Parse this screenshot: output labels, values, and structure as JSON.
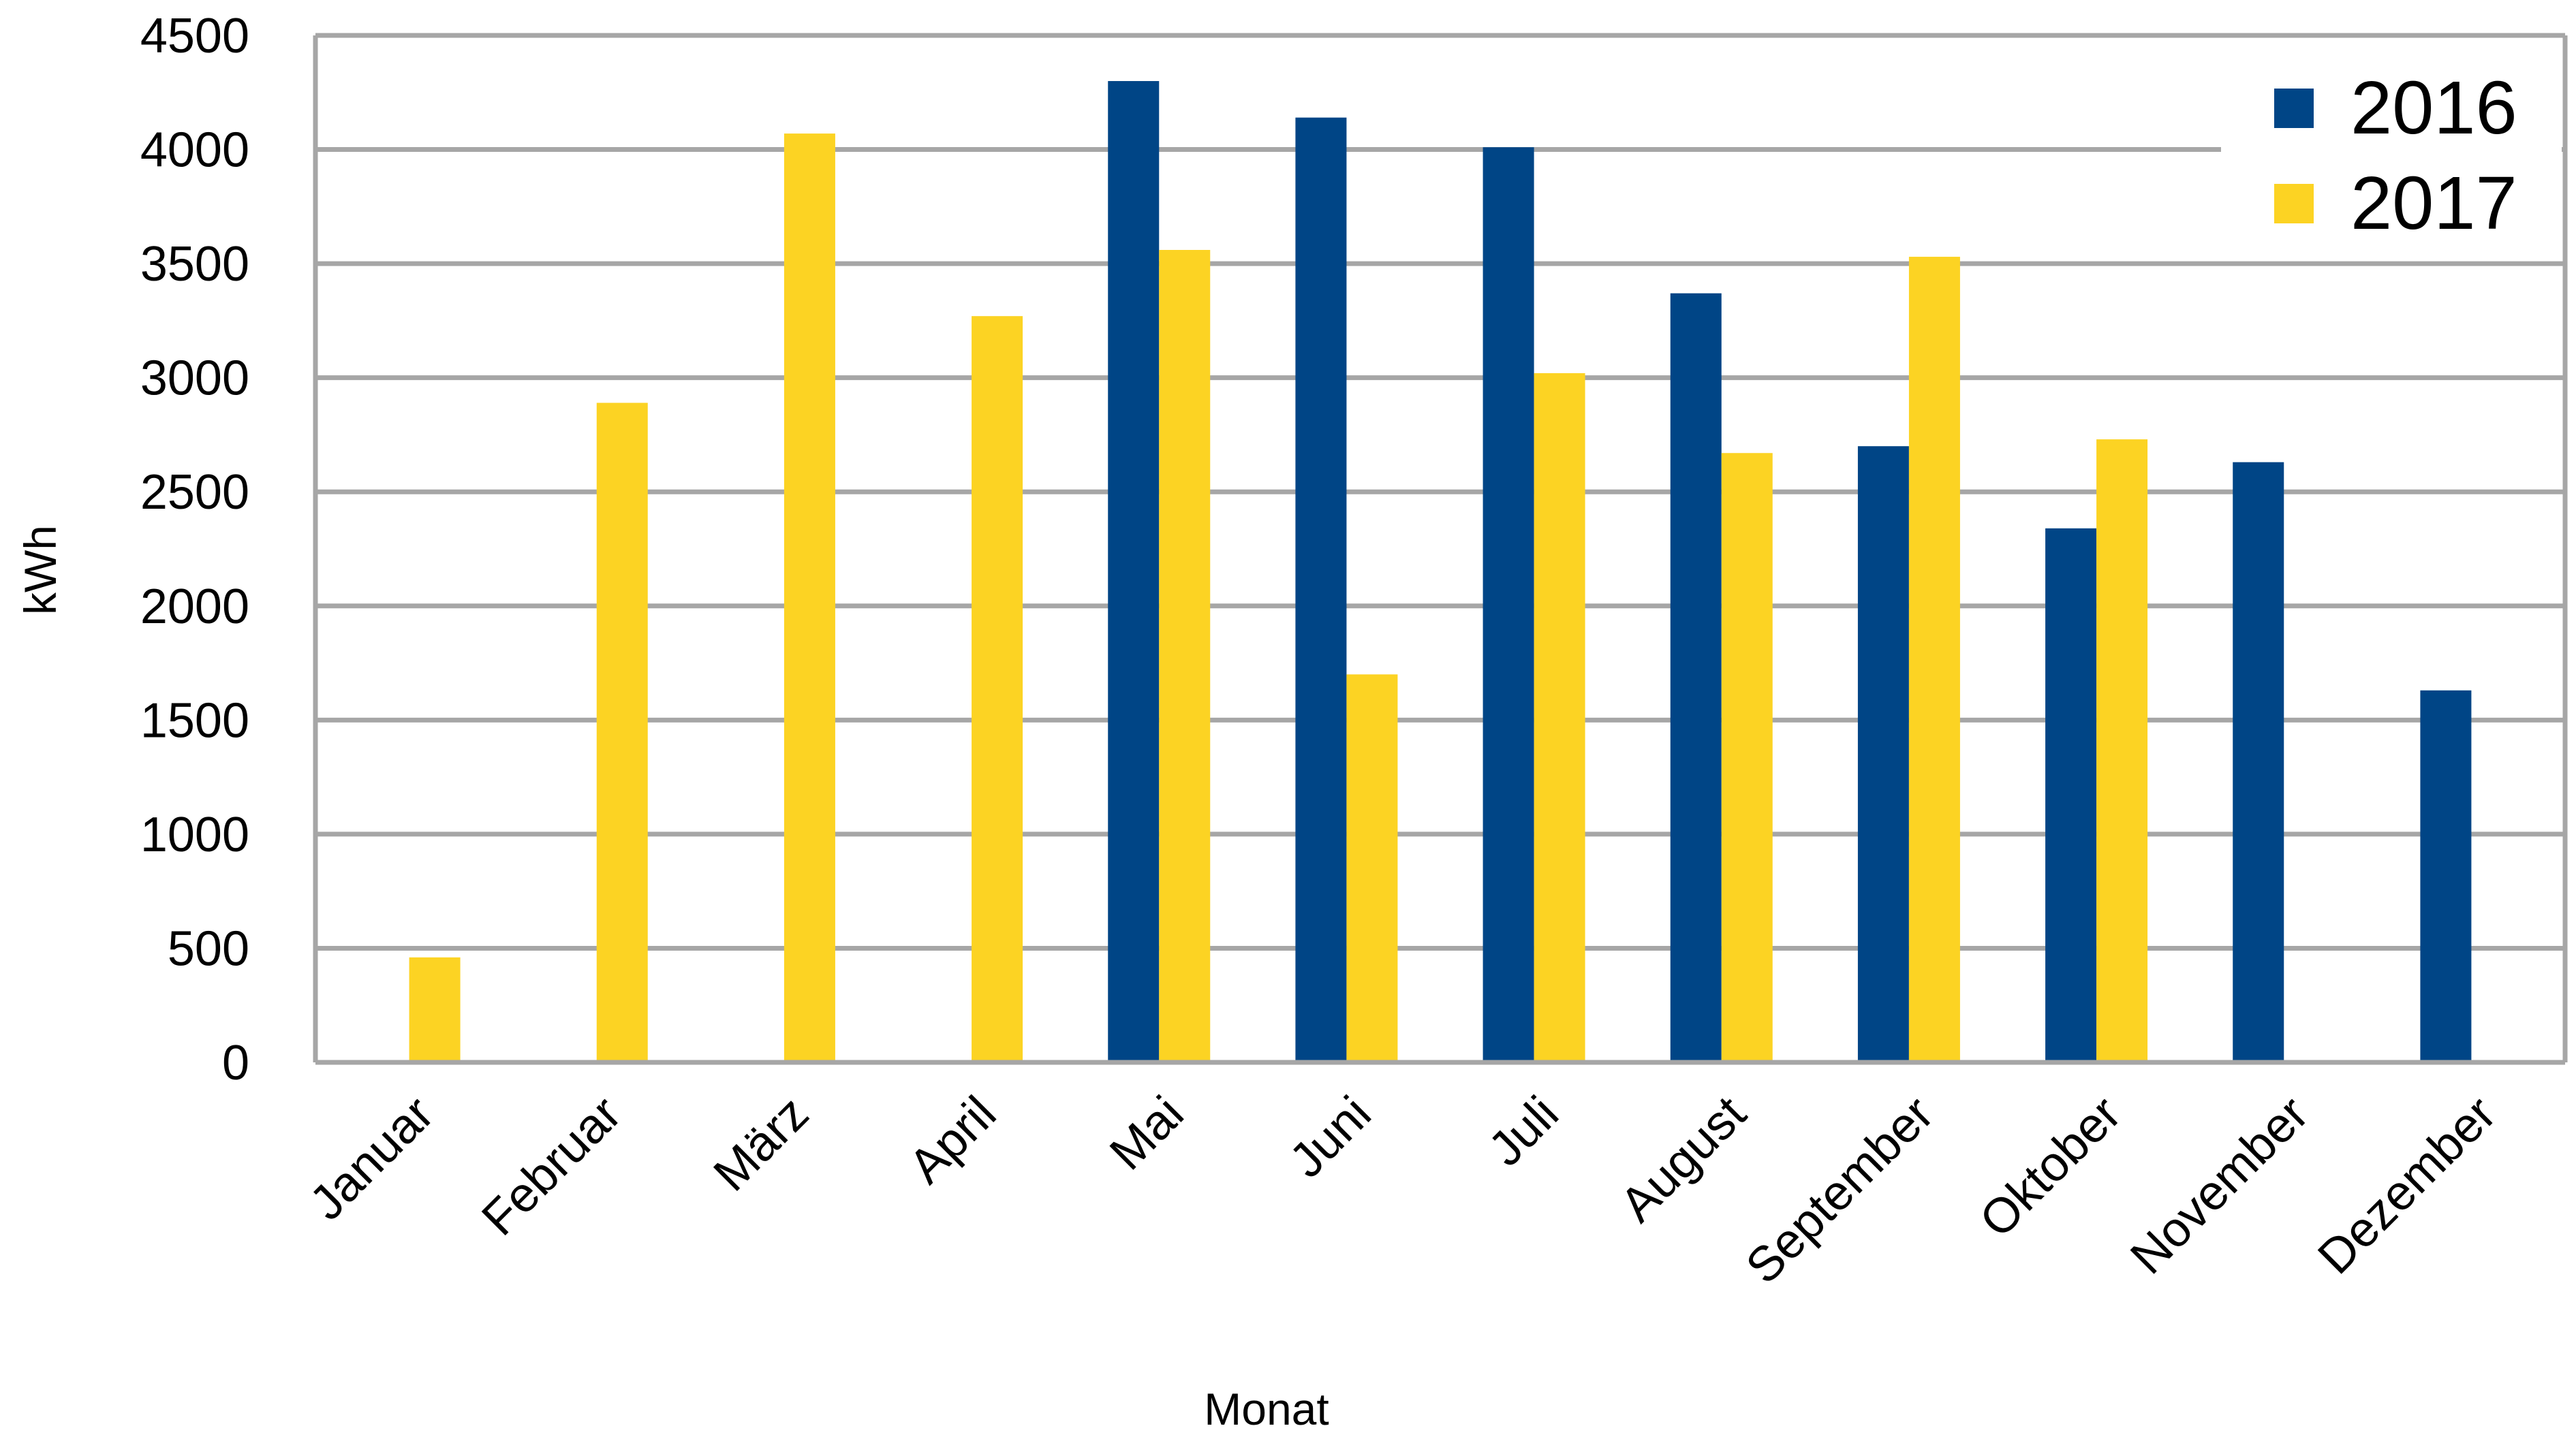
{
  "chart_data": {
    "type": "bar",
    "xlabel": "Monat",
    "ylabel": "kWh",
    "ylim": [
      0,
      4500
    ],
    "yticks": [
      0,
      500,
      1000,
      1500,
      2000,
      2500,
      3000,
      3500,
      4000,
      4500
    ],
    "grid": true,
    "legend_position": "top-right",
    "categories": [
      "Januar",
      "Februar",
      "März",
      "April",
      "Mai",
      "Juni",
      "Juli",
      "August",
      "September",
      "Oktober",
      "November",
      "Dezember"
    ],
    "series": [
      {
        "name": "2016",
        "color": "#004586",
        "values": [
          null,
          null,
          null,
          null,
          4300,
          4140,
          4010,
          3370,
          2700,
          2340,
          2630,
          1630
        ]
      },
      {
        "name": "2017",
        "color": "#FCD323",
        "values": [
          460,
          2890,
          4070,
          3270,
          3560,
          1700,
          3020,
          2670,
          3530,
          2730,
          null,
          null
        ]
      }
    ]
  }
}
